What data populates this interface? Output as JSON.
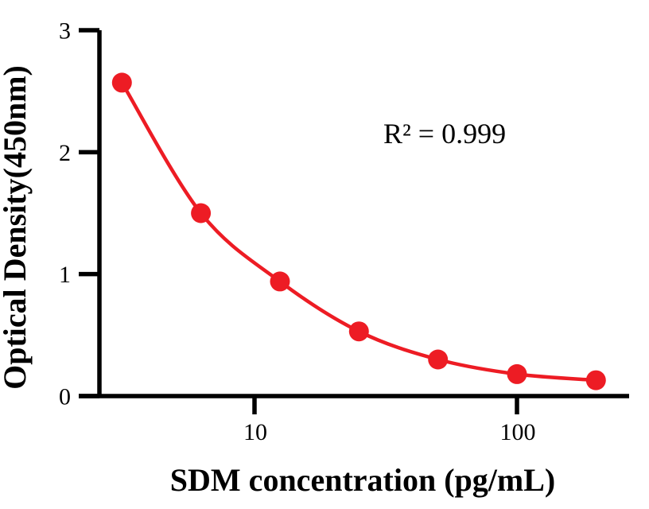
{
  "figure": {
    "background": "#FFFFFF"
  },
  "chart_data": {
    "type": "line",
    "subtype": "elisa-standard-curve",
    "title": "",
    "xlabel": "SDM concentration (pg/mL)",
    "ylabel": "Optical Density(450nm)",
    "annotation": "R² = 0.999",
    "x_scale": "log10",
    "x": [
      3.125,
      6.25,
      12.5,
      25,
      50,
      100,
      200
    ],
    "y": [
      2.57,
      1.5,
      0.94,
      0.53,
      0.3,
      0.18,
      0.13
    ],
    "x_ticks": [
      10,
      100
    ],
    "x_tick_labels": [
      "10",
      "100"
    ],
    "y_ticks": [
      0,
      1,
      2,
      3
    ],
    "y_tick_labels": [
      "0",
      "1",
      "2",
      "3"
    ],
    "xlim": [
      2.14,
      267
    ],
    "ylim": [
      0,
      3
    ],
    "grid": false,
    "legend": null,
    "colors": {
      "series": "#ED1C24",
      "axis": "#000000",
      "text": "#000000"
    },
    "marker": {
      "shape": "circle",
      "radius_px": 12.5
    },
    "line_style": "smooth"
  }
}
